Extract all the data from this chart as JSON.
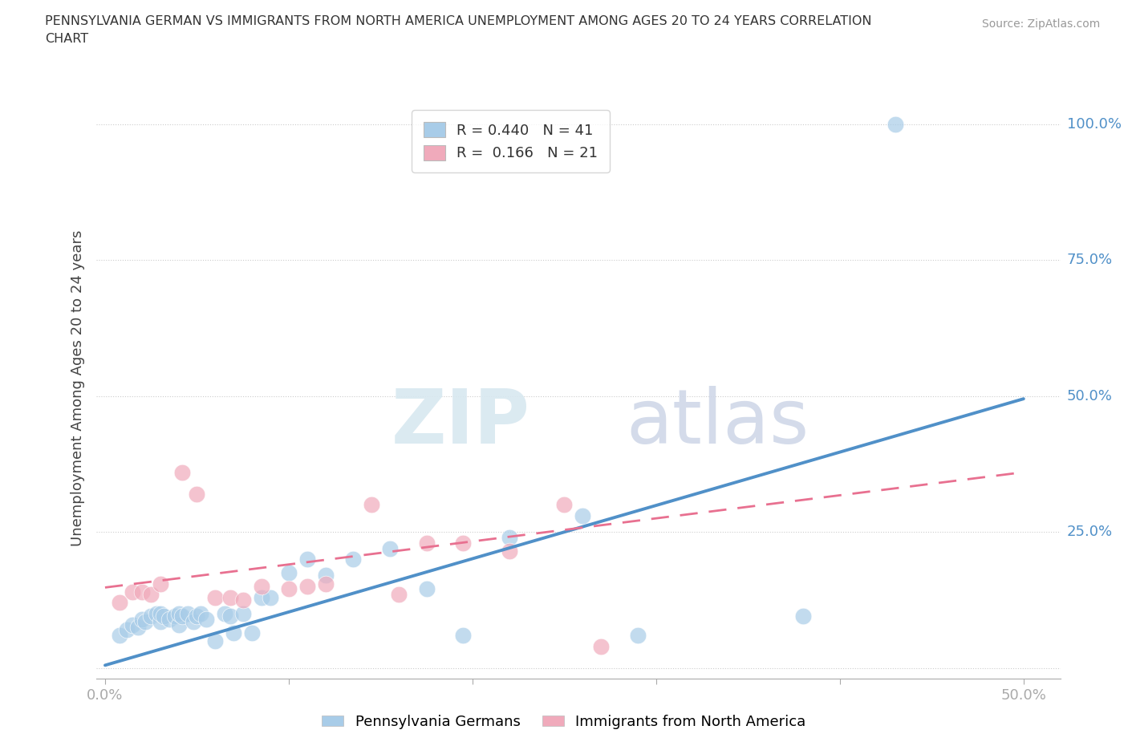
{
  "title_line1": "PENNSYLVANIA GERMAN VS IMMIGRANTS FROM NORTH AMERICA UNEMPLOYMENT AMONG AGES 20 TO 24 YEARS CORRELATION",
  "title_line2": "CHART",
  "source": "Source: ZipAtlas.com",
  "ylabel": "Unemployment Among Ages 20 to 24 years",
  "xlim": [
    -0.005,
    0.52
  ],
  "ylim": [
    -0.02,
    1.05
  ],
  "xtick_positions": [
    0.0,
    0.1,
    0.2,
    0.3,
    0.4,
    0.5
  ],
  "xticklabels": [
    "0.0%",
    "",
    "",
    "",
    "",
    "50.0%"
  ],
  "ytick_positions": [
    0.0,
    0.25,
    0.5,
    0.75,
    1.0
  ],
  "yticklabels_right": [
    "",
    "25.0%",
    "50.0%",
    "75.0%",
    "100.0%"
  ],
  "legend1_label": "R = 0.440   N = 41",
  "legend2_label": "R =  0.166   N = 21",
  "blue_color": "#A8CCE8",
  "pink_color": "#F0AABB",
  "blue_line_color": "#5090C8",
  "pink_line_color": "#E87090",
  "right_label_color": "#5090C8",
  "watermark_zip": "ZIP",
  "watermark_atlas": "atlas",
  "grid_color": "#CCCCCC",
  "spine_color": "#AAAAAA",
  "blue_scatter_x": [
    0.008,
    0.012,
    0.015,
    0.018,
    0.02,
    0.022,
    0.025,
    0.028,
    0.03,
    0.03,
    0.032,
    0.035,
    0.038,
    0.04,
    0.04,
    0.042,
    0.045,
    0.048,
    0.05,
    0.052,
    0.055,
    0.06,
    0.065,
    0.068,
    0.07,
    0.075,
    0.08,
    0.085,
    0.09,
    0.1,
    0.11,
    0.12,
    0.135,
    0.155,
    0.175,
    0.195,
    0.22,
    0.26,
    0.29,
    0.38,
    0.43
  ],
  "blue_scatter_y": [
    0.06,
    0.07,
    0.08,
    0.075,
    0.09,
    0.085,
    0.095,
    0.1,
    0.085,
    0.1,
    0.095,
    0.09,
    0.095,
    0.08,
    0.1,
    0.095,
    0.1,
    0.085,
    0.095,
    0.1,
    0.09,
    0.05,
    0.1,
    0.095,
    0.065,
    0.1,
    0.065,
    0.13,
    0.13,
    0.175,
    0.2,
    0.17,
    0.2,
    0.22,
    0.145,
    0.06,
    0.24,
    0.28,
    0.06,
    0.095,
    1.0
  ],
  "pink_scatter_x": [
    0.008,
    0.015,
    0.02,
    0.025,
    0.03,
    0.042,
    0.05,
    0.06,
    0.068,
    0.075,
    0.085,
    0.1,
    0.11,
    0.12,
    0.145,
    0.16,
    0.175,
    0.195,
    0.22,
    0.25,
    0.27
  ],
  "pink_scatter_y": [
    0.12,
    0.14,
    0.14,
    0.135,
    0.155,
    0.36,
    0.32,
    0.13,
    0.13,
    0.125,
    0.15,
    0.145,
    0.15,
    0.155,
    0.3,
    0.135,
    0.23,
    0.23,
    0.215,
    0.3,
    0.04
  ],
  "blue_trend_x0": 0.0,
  "blue_trend_x1": 0.5,
  "blue_trend_y0": 0.005,
  "blue_trend_y1": 0.495,
  "pink_trend_x0": 0.0,
  "pink_trend_x1": 0.5,
  "pink_trend_y0": 0.148,
  "pink_trend_y1": 0.36,
  "fig_width": 14.06,
  "fig_height": 9.3,
  "dpi": 100
}
